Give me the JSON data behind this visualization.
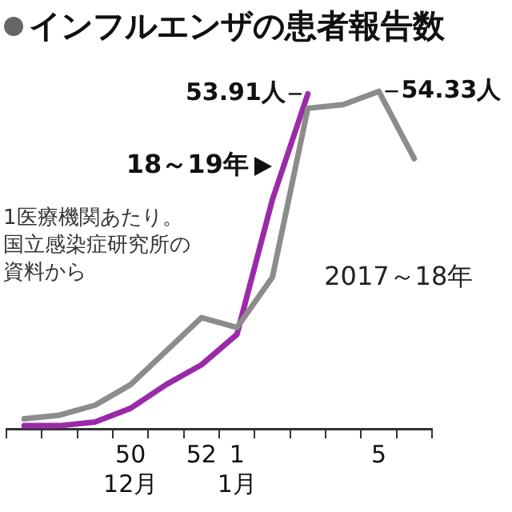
{
  "chart_data": {
    "type": "line",
    "title": "インフルエンザの患者報告数",
    "tick_labels": "x",
    "marker": "none",
    "legend": false,
    "categories": [
      null,
      null,
      null,
      "50",
      null,
      "52",
      "1",
      null,
      null,
      null,
      "5",
      null
    ],
    "series": [
      {
        "name": "2017～18年",
        "color": "#8c8c8c",
        "values": [
          1.6,
          2.2,
          3.8,
          7.1,
          12.5,
          17.9,
          16.3,
          24.4,
          51.6,
          52.2,
          54.33,
          43.5
        ],
        "value_labels": [
          null,
          null,
          null,
          null,
          null,
          null,
          null,
          null,
          null,
          null,
          "54.33人",
          null
        ]
      },
      {
        "name": "18～19年",
        "color": "#9a2aa8",
        "values": [
          0.5,
          0.5,
          1.1,
          3.3,
          7.1,
          10.3,
          15.2,
          36.9,
          53.91,
          null,
          null,
          null
        ],
        "value_labels": [
          null,
          null,
          null,
          null,
          null,
          null,
          null,
          null,
          "53.91人",
          null,
          null,
          null
        ]
      }
    ],
    "annotations": [
      "12月",
      "1月",
      "1医療機関あたり。国立感染症研究所の資料から"
    ]
  }
}
